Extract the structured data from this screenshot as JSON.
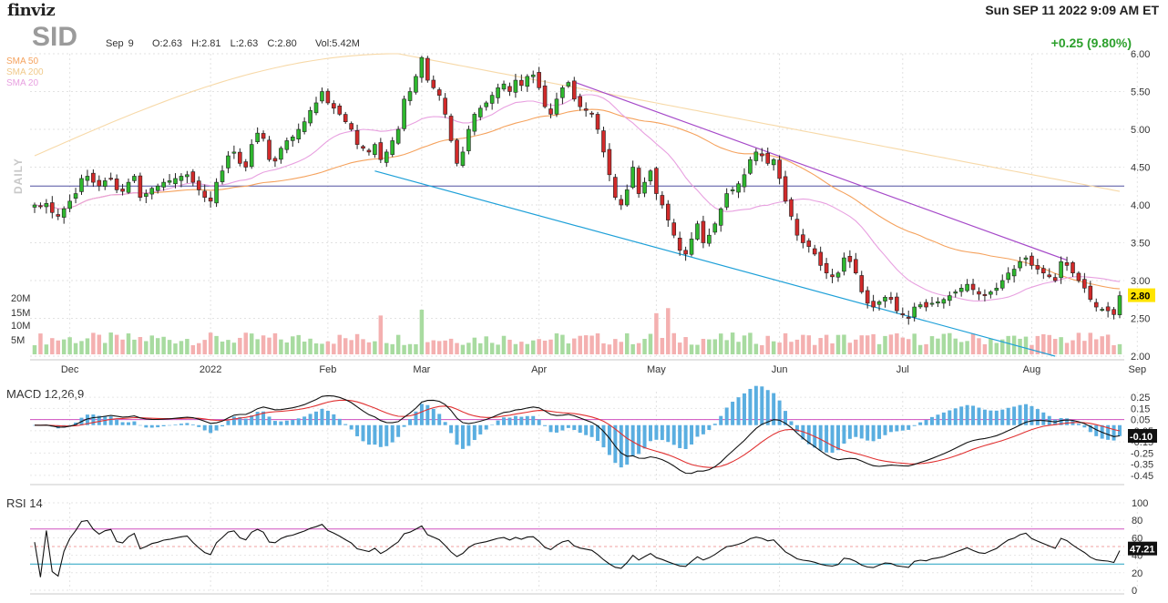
{
  "header": {
    "brand": "finviz",
    "datetime": "Sun SEP 11 2022 9:09 AM ET",
    "ticker": "SID",
    "ohlc": "Sep 9    O:2.63  H:2.81  L:2.63  C:2.80    Vol:5.42M",
    "change": "+0.25 (9.80%)"
  },
  "legend": {
    "sma50": "SMA 50",
    "sma200": "SMA 200",
    "sma20": "SMA 20",
    "period": "DAILY"
  },
  "colors": {
    "up": "#2eb82e",
    "down": "#d12a2a",
    "sma50": "#f5a25d",
    "sma200": "#f7d9a8",
    "sma20": "#e8a0e0",
    "trend_upper": "#a64ac9",
    "trend_lower": "#1ea0d8",
    "hline": "#5050a0",
    "macd_line": "#111111",
    "signal_line": "#e03030",
    "hist": "#5aaee0",
    "rsi": "#111111",
    "rsi_upper": "#d050c0",
    "rsi_lower": "#20a0c0"
  },
  "indicators": {
    "macd_label": "MACD 12,26,9",
    "macd_value": "-0.10",
    "rsi_label": "RSI 14",
    "rsi_value": "47.21",
    "price_badge": "2.80"
  },
  "chart_data": {
    "type": "candlestick",
    "price_ylim": [
      2.0,
      6.0
    ],
    "price_ticks": [
      "6.00",
      "5.50",
      "5.00",
      "4.50",
      "4.00",
      "3.50",
      "3.00",
      "2.50",
      "2.00"
    ],
    "volume_ticks": [
      "20M",
      "15M",
      "10M",
      "5M"
    ],
    "x_ticks": [
      "Dec",
      "2022",
      "Feb",
      "Mar",
      "Apr",
      "May",
      "Jun",
      "Jul",
      "Aug",
      "Sep"
    ],
    "macd_ticks": [
      "0.25",
      "0.15",
      "0.05",
      "-0.05",
      "-0.15",
      "-0.25",
      "-0.35",
      "-0.45"
    ],
    "rsi_ticks": [
      "100",
      "80",
      "60",
      "40",
      "20",
      "0"
    ],
    "horizontal_level": 4.25,
    "close": [
      4.0,
      3.98,
      4.02,
      3.9,
      3.85,
      3.95,
      4.05,
      4.15,
      4.35,
      4.38,
      4.3,
      4.25,
      4.32,
      4.35,
      4.2,
      4.18,
      4.3,
      4.38,
      4.1,
      4.15,
      4.22,
      4.25,
      4.3,
      4.32,
      4.35,
      4.38,
      4.4,
      4.3,
      4.2,
      4.1,
      4.05,
      4.3,
      4.45,
      4.65,
      4.7,
      4.55,
      4.5,
      4.8,
      4.95,
      4.88,
      4.6,
      4.58,
      4.75,
      4.85,
      4.9,
      5.0,
      5.1,
      5.25,
      5.35,
      5.5,
      5.35,
      5.28,
      5.2,
      5.1,
      5.0,
      4.8,
      4.75,
      4.7,
      4.8,
      4.6,
      4.7,
      4.85,
      5.0,
      5.4,
      5.5,
      5.7,
      5.95,
      5.65,
      5.55,
      5.45,
      5.2,
      4.85,
      4.55,
      4.7,
      5.0,
      5.2,
      5.28,
      5.35,
      5.45,
      5.55,
      5.6,
      5.5,
      5.65,
      5.58,
      5.7,
      5.72,
      5.55,
      5.3,
      5.2,
      5.4,
      5.55,
      5.62,
      5.4,
      5.3,
      5.25,
      5.2,
      5.0,
      4.7,
      4.4,
      4.1,
      4.0,
      4.2,
      4.5,
      4.15,
      4.3,
      4.45,
      4.15,
      4.0,
      3.8,
      3.6,
      3.4,
      3.35,
      3.55,
      3.75,
      3.5,
      3.6,
      3.75,
      3.95,
      4.15,
      4.2,
      4.28,
      4.4,
      4.6,
      4.7,
      4.65,
      4.55,
      4.6,
      4.35,
      4.05,
      3.85,
      3.6,
      3.5,
      3.45,
      3.35,
      3.2,
      3.1,
      3.05,
      3.1,
      3.3,
      3.25,
      3.1,
      2.85,
      2.7,
      2.65,
      2.72,
      2.78,
      2.75,
      2.6,
      2.55,
      2.5,
      2.65,
      2.68,
      2.65,
      2.7,
      2.72,
      2.75,
      2.8,
      2.85,
      2.9,
      2.95,
      2.88,
      2.82,
      2.8,
      2.85,
      2.9,
      3.0,
      3.1,
      3.15,
      3.25,
      3.3,
      3.2,
      3.15,
      3.1,
      3.05,
      3.0,
      3.25,
      3.2,
      3.1,
      3.0,
      2.9,
      2.75,
      2.65,
      2.62,
      2.6,
      2.55,
      2.8
    ]
  }
}
